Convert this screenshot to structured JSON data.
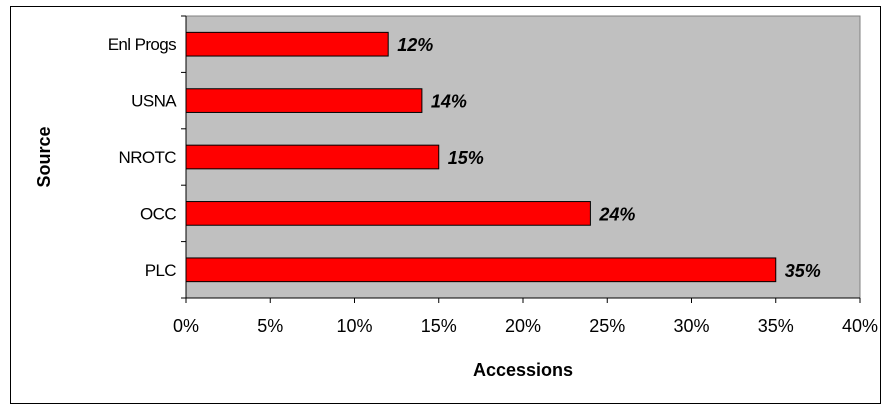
{
  "colors": {
    "bar_fill": "#ff0000",
    "bar_stroke": "#000000",
    "plot_background": "#c0c0c0"
  },
  "chart_data": {
    "type": "bar",
    "orientation": "horizontal",
    "categories": [
      "Enl Progs",
      "USNA",
      "NROTC",
      "OCC",
      "PLC"
    ],
    "values": [
      12,
      14,
      15,
      24,
      35
    ],
    "data_labels": [
      "12%",
      "14%",
      "15%",
      "24%",
      "35%"
    ],
    "xlabel": "Accessions",
    "ylabel": "Source",
    "xlim": [
      0,
      40
    ],
    "x_ticks": [
      0,
      5,
      10,
      15,
      20,
      25,
      30,
      35,
      40
    ],
    "x_tick_labels": [
      "0%",
      "5%",
      "10%",
      "15%",
      "20%",
      "25%",
      "30%",
      "35%",
      "40%"
    ],
    "grid": false,
    "legend": "none"
  }
}
